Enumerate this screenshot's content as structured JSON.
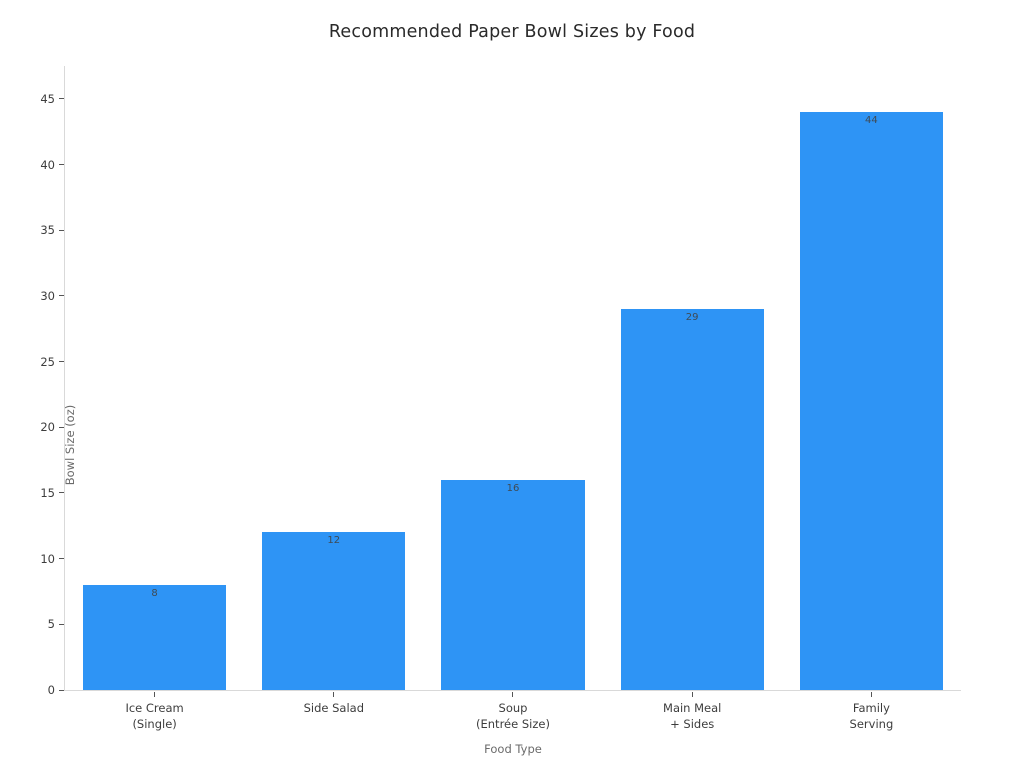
{
  "chart_data": {
    "type": "bar",
    "title": "Recommended Paper Bowl Sizes by Food",
    "xlabel": "Food Type",
    "ylabel": "Bowl Size (oz)",
    "categories": [
      [
        "Ice Cream",
        "(Single)"
      ],
      [
        "Side Salad"
      ],
      [
        "Soup",
        "(Entrée Size)"
      ],
      [
        "Main Meal",
        "+ Sides"
      ],
      [
        "Family",
        "Serving"
      ]
    ],
    "values": [
      8,
      12,
      16,
      29,
      44
    ],
    "value_labels": [
      "8",
      "12",
      "16",
      "29",
      "44"
    ],
    "yticks": [
      0,
      5,
      10,
      15,
      20,
      25,
      30,
      35,
      40,
      45
    ],
    "ylim": [
      0,
      47.5
    ],
    "grid": false,
    "legend": "none",
    "bar_color": "#2E94F5",
    "bar_width_fraction": 0.8,
    "value_label_color": "#3f4a54",
    "tick_label_color": "#3d3d3d",
    "axis_title_color": "#6b6b6b",
    "spine_color": "#d9d9d9",
    "background_color": "#ffffff"
  }
}
